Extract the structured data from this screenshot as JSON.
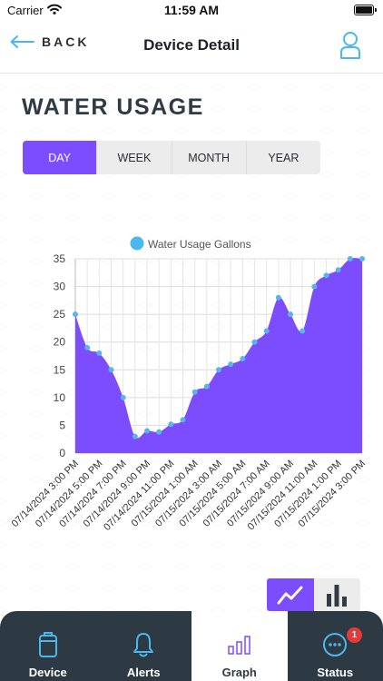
{
  "status_bar": {
    "carrier": "Carrier",
    "time": "11:59 AM"
  },
  "nav": {
    "back_label": "BACK",
    "title": "Device Detail"
  },
  "section_title": "WATER USAGE",
  "range_tabs": [
    {
      "label": "DAY",
      "active": true
    },
    {
      "label": "WEEK",
      "active": false
    },
    {
      "label": "MONTH",
      "active": false
    },
    {
      "label": "YEAR",
      "active": false
    }
  ],
  "chart_data": {
    "type": "area",
    "title": "",
    "xlabel": "",
    "ylabel": "",
    "ylim": [
      0,
      35
    ],
    "yticks": [
      0,
      5,
      10,
      15,
      20,
      25,
      30,
      35
    ],
    "grid": true,
    "legend_position": "top-center",
    "colors": {
      "fill": "#7b4dff",
      "point": "#5ab4e9",
      "legend_marker": "#4ab7ee"
    },
    "x": [
      "07/14/2024 3:00 PM",
      "07/14/2024 4:00 PM",
      "07/14/2024 5:00 PM",
      "07/14/2024 6:00 PM",
      "07/14/2024 7:00 PM",
      "07/14/2024 8:00 PM",
      "07/14/2024 9:00 PM",
      "07/14/2024 10:00 PM",
      "07/14/2024 11:00 PM",
      "07/15/2024 12:00 AM",
      "07/15/2024 1:00 AM",
      "07/15/2024 2:00 AM",
      "07/15/2024 3:00 AM",
      "07/15/2024 4:00 AM",
      "07/15/2024 5:00 AM",
      "07/15/2024 6:00 AM",
      "07/15/2024 7:00 AM",
      "07/15/2024 8:00 AM",
      "07/15/2024 9:00 AM",
      "07/15/2024 10:00 AM",
      "07/15/2024 11:00 AM",
      "07/15/2024 12:00 PM",
      "07/15/2024 1:00 PM",
      "07/15/2024 2:00 PM",
      "07/15/2024 3:00 PM"
    ],
    "xticks": [
      "07/14/2024 3:00 PM",
      "07/14/2024 5:00 PM",
      "07/14/2024 7:00 PM",
      "07/14/2024 9:00 PM",
      "07/14/2024 11:00 PM",
      "07/15/2024 1:00 AM",
      "07/15/2024 3:00 AM",
      "07/15/2024 5:00 AM",
      "07/15/2024 7:00 AM",
      "07/15/2024 9:00 AM",
      "07/15/2024 11:00 AM",
      "07/15/2024 1:00 PM",
      "07/15/2024 3:00 PM"
    ],
    "series": [
      {
        "name": "Water Usage Gallons",
        "values": [
          25,
          19,
          18,
          15,
          10,
          3,
          4,
          3.8,
          5.2,
          6,
          11,
          12,
          15,
          16,
          17,
          20,
          22,
          28,
          25,
          22,
          30,
          32,
          33,
          35,
          35
        ]
      }
    ]
  },
  "chart_type_toggle": {
    "active": "line",
    "options": [
      "line-chart-icon",
      "bar-chart-icon"
    ]
  },
  "tabs": [
    {
      "label": "Device",
      "icon": "device-icon",
      "active": false
    },
    {
      "label": "Alerts",
      "icon": "bell-icon",
      "active": false
    },
    {
      "label": "Graph",
      "icon": "bar-chart-icon",
      "active": true
    },
    {
      "label": "Status",
      "icon": "status-icon",
      "active": false,
      "badge": "1"
    }
  ]
}
